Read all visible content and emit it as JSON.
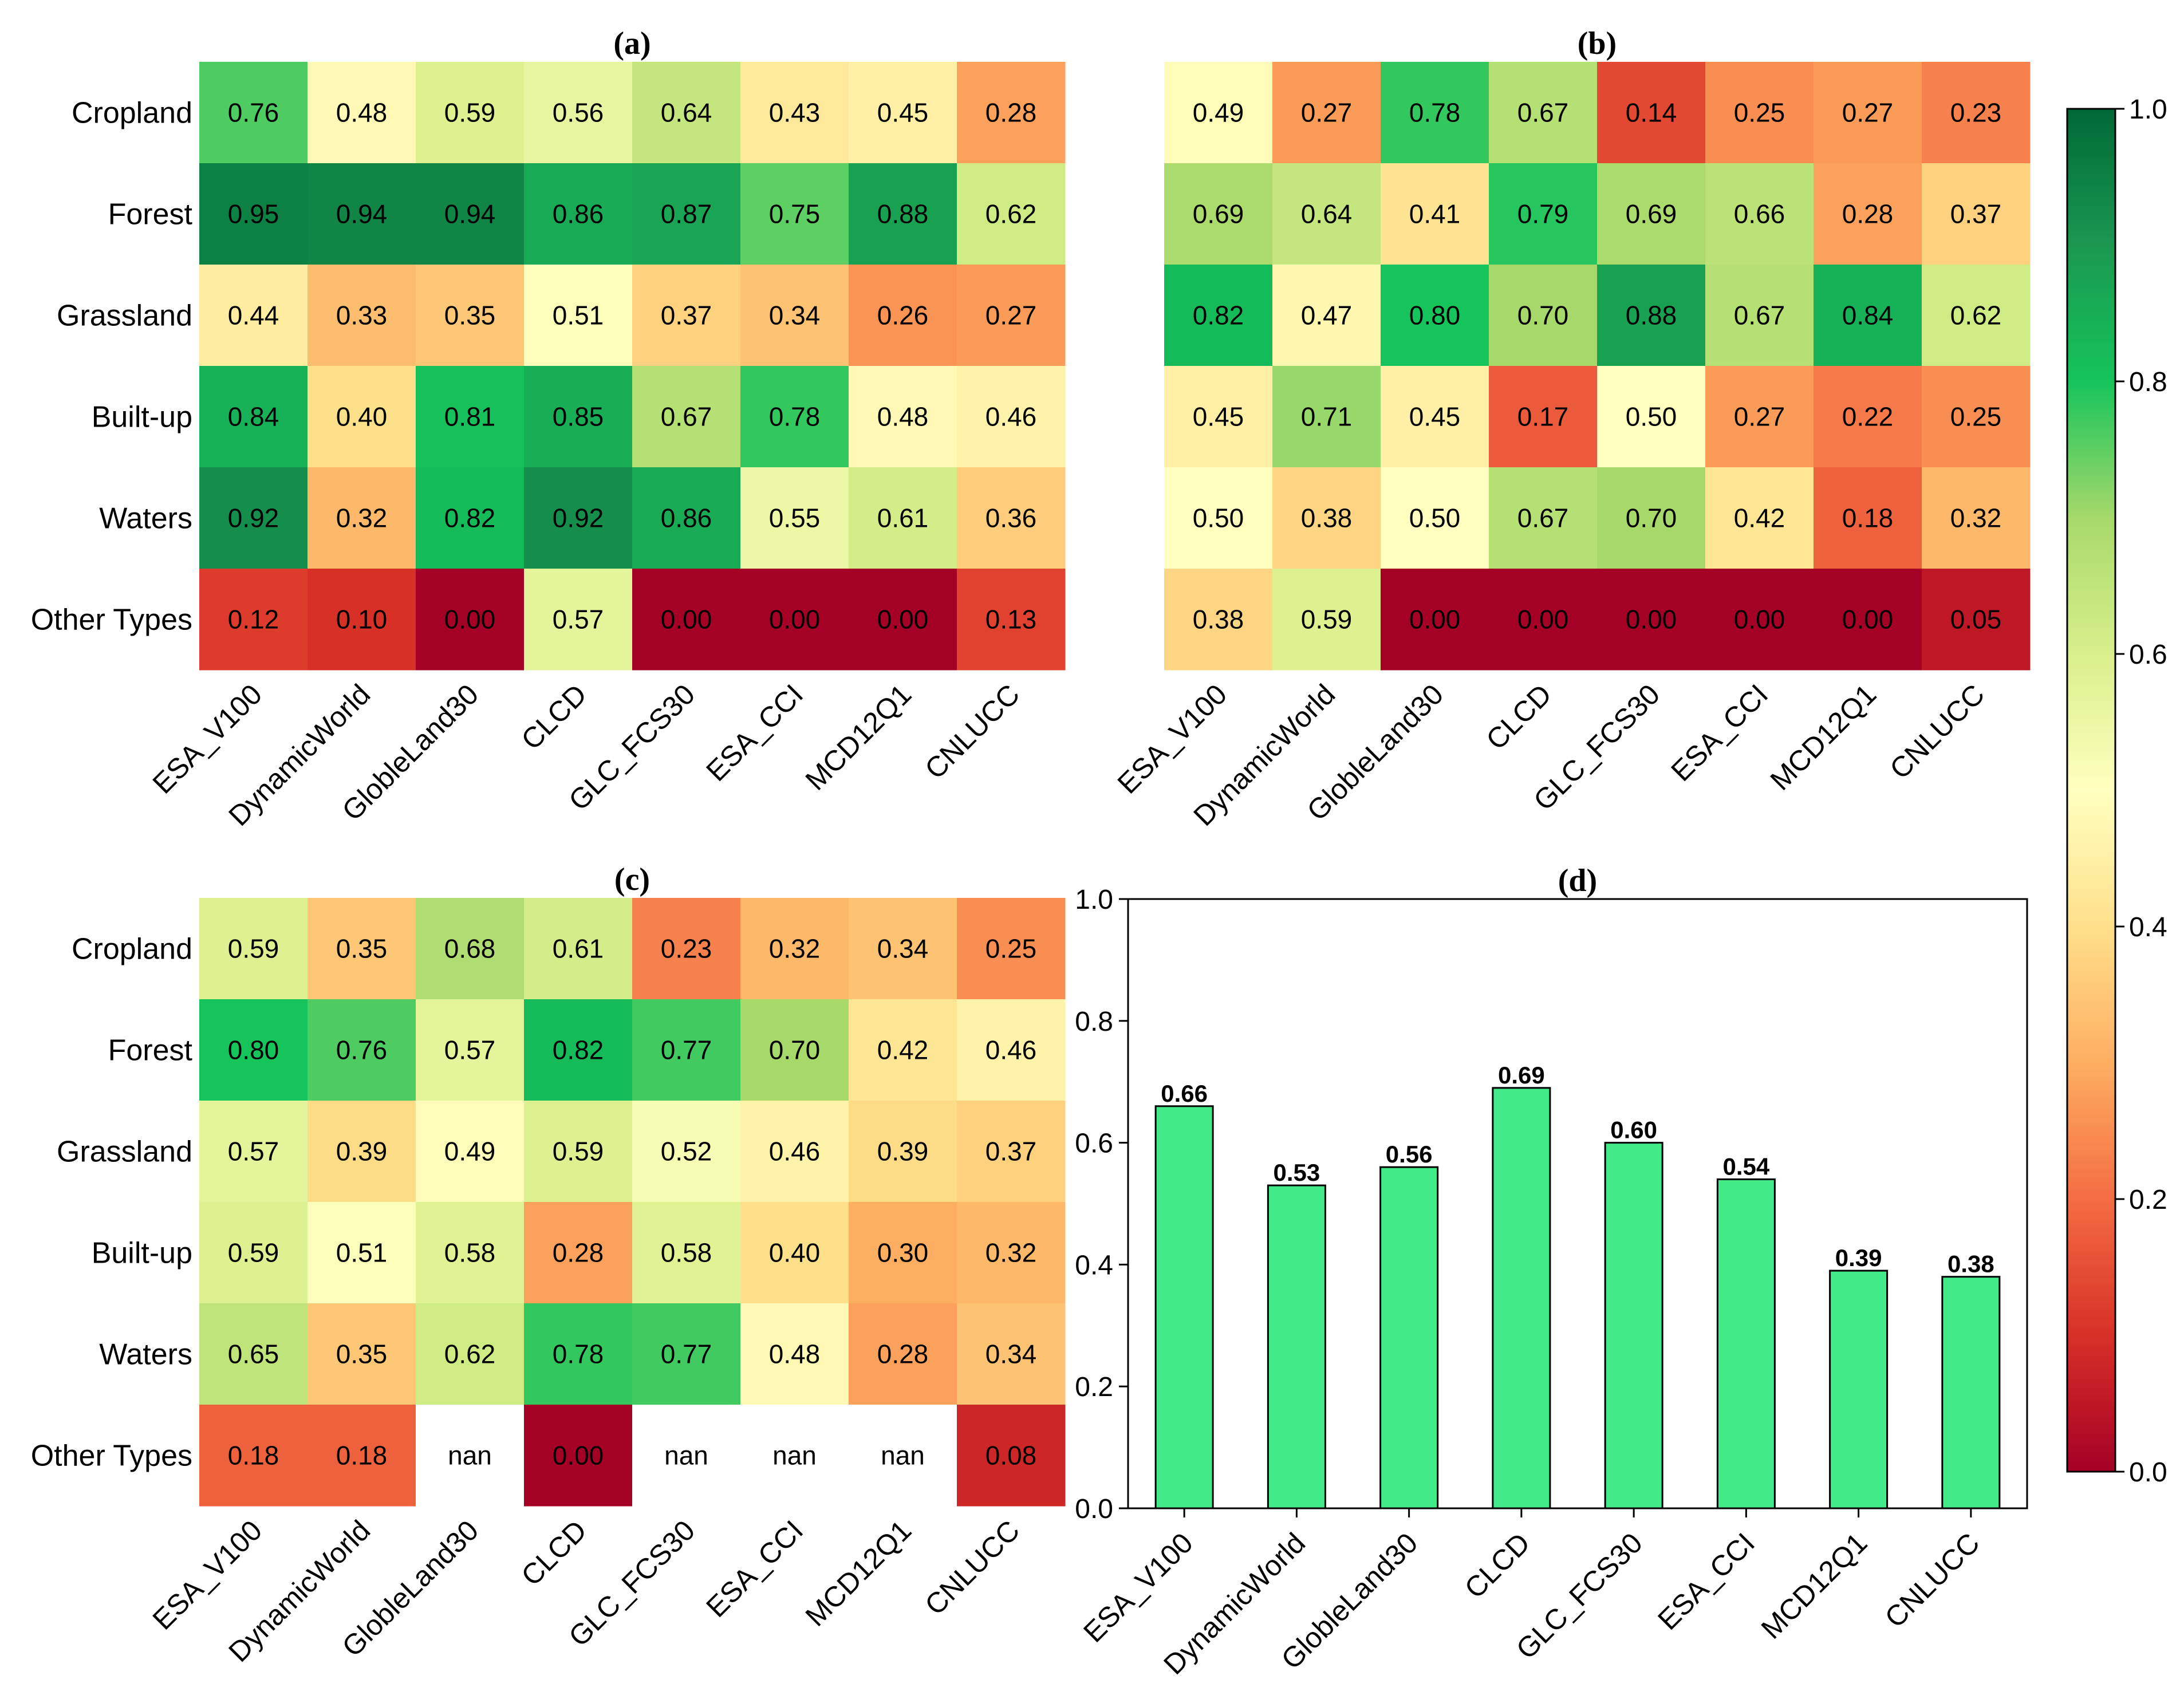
{
  "chart_data": [
    {
      "type": "heatmap",
      "title": "(a)",
      "rows": [
        "Cropland",
        "Forest",
        "Grassland",
        "Built-up",
        "Waters",
        "Other Types"
      ],
      "columns": [
        "ESA_V100",
        "DynamicWorld",
        "GlobleLand30",
        "CLCD",
        "GLC_FCS30",
        "ESA_CCI",
        "MCD12Q1",
        "CNLUCC"
      ],
      "values": [
        [
          0.76,
          0.48,
          0.59,
          0.56,
          0.64,
          0.43,
          0.45,
          0.28
        ],
        [
          0.95,
          0.94,
          0.94,
          0.86,
          0.87,
          0.75,
          0.88,
          0.62
        ],
        [
          0.44,
          0.33,
          0.35,
          0.51,
          0.37,
          0.34,
          0.26,
          0.27
        ],
        [
          0.84,
          0.4,
          0.81,
          0.85,
          0.67,
          0.78,
          0.48,
          0.46
        ],
        [
          0.92,
          0.32,
          0.82,
          0.92,
          0.86,
          0.55,
          0.61,
          0.36
        ],
        [
          0.12,
          0.1,
          0.0,
          0.57,
          0.0,
          0.0,
          0.0,
          0.13
        ]
      ]
    },
    {
      "type": "heatmap",
      "title": "(b)",
      "rows": [
        "Cropland",
        "Forest",
        "Grassland",
        "Built-up",
        "Waters",
        "Other Types"
      ],
      "columns": [
        "ESA_V100",
        "DynamicWorld",
        "GlobleLand30",
        "CLCD",
        "GLC_FCS30",
        "ESA_CCI",
        "MCD12Q1",
        "CNLUCC"
      ],
      "values": [
        [
          0.49,
          0.27,
          0.78,
          0.67,
          0.14,
          0.25,
          0.27,
          0.23
        ],
        [
          0.69,
          0.64,
          0.41,
          0.79,
          0.69,
          0.66,
          0.28,
          0.37
        ],
        [
          0.82,
          0.47,
          0.8,
          0.7,
          0.88,
          0.67,
          0.84,
          0.62
        ],
        [
          0.45,
          0.71,
          0.45,
          0.17,
          0.5,
          0.27,
          0.22,
          0.25
        ],
        [
          0.5,
          0.38,
          0.5,
          0.67,
          0.7,
          0.42,
          0.18,
          0.32
        ],
        [
          0.38,
          0.59,
          0.0,
          0.0,
          0.0,
          0.0,
          0.0,
          0.05
        ]
      ]
    },
    {
      "type": "heatmap",
      "title": "(c)",
      "rows": [
        "Cropland",
        "Forest",
        "Grassland",
        "Built-up",
        "Waters",
        "Other Types"
      ],
      "columns": [
        "ESA_V100",
        "DynamicWorld",
        "GlobleLand30",
        "CLCD",
        "GLC_FCS30",
        "ESA_CCI",
        "MCD12Q1",
        "CNLUCC"
      ],
      "values": [
        [
          0.59,
          0.35,
          0.68,
          0.61,
          0.23,
          0.32,
          0.34,
          0.25
        ],
        [
          0.8,
          0.76,
          0.57,
          0.82,
          0.77,
          0.7,
          0.42,
          0.46
        ],
        [
          0.57,
          0.39,
          0.49,
          0.59,
          0.52,
          0.46,
          0.39,
          0.37
        ],
        [
          0.59,
          0.51,
          0.58,
          0.28,
          0.58,
          0.4,
          0.3,
          0.32
        ],
        [
          0.65,
          0.35,
          0.62,
          0.78,
          0.77,
          0.48,
          0.28,
          0.34
        ],
        [
          0.18,
          0.18,
          "nan",
          0.0,
          "nan",
          "nan",
          "nan",
          0.08
        ]
      ]
    },
    {
      "type": "bar",
      "title": "(d)",
      "categories": [
        "ESA_V100",
        "DynamicWorld",
        "GlobleLand30",
        "CLCD",
        "GLC_FCS30",
        "ESA_CCI",
        "MCD12Q1",
        "CNLUCC"
      ],
      "values": [
        0.66,
        0.53,
        0.56,
        0.69,
        0.6,
        0.54,
        0.39,
        0.38
      ],
      "ylim": [
        0,
        1.0
      ],
      "yticks": [
        0.0,
        0.2,
        0.4,
        0.6,
        0.8,
        1.0
      ],
      "bar_color": "#42ea89"
    }
  ],
  "colorbar": {
    "ticks": [
      0.0,
      0.2,
      0.4,
      0.6,
      0.8,
      1.0
    ],
    "range": [
      0,
      1
    ],
    "colormap": "RdYlGn"
  }
}
